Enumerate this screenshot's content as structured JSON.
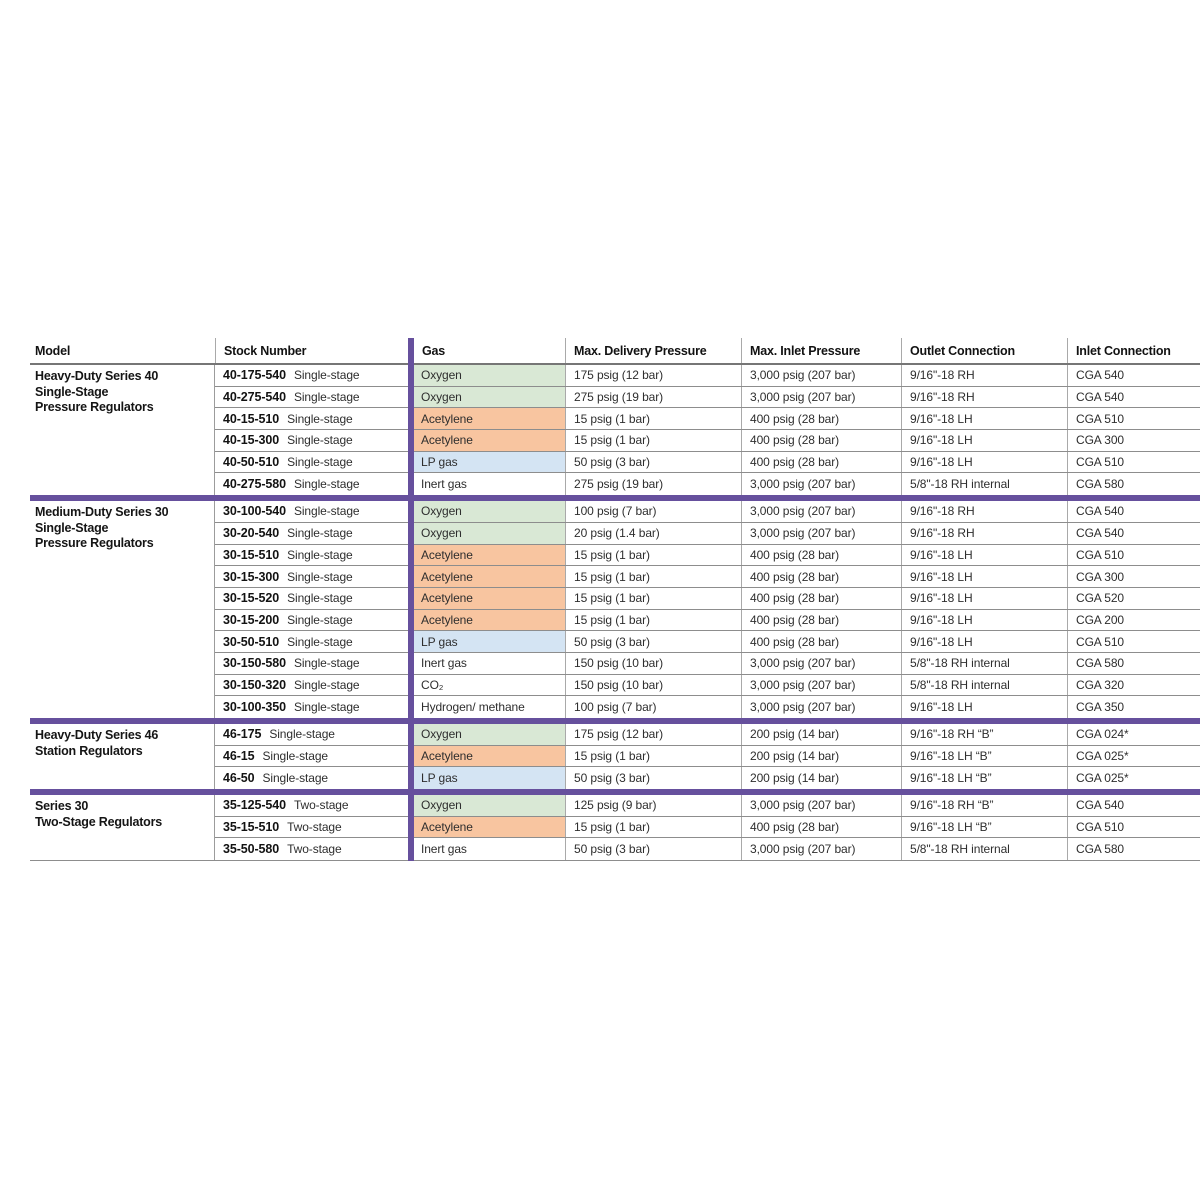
{
  "table": {
    "headers": [
      "Model",
      "Stock Number",
      "Gas",
      "Max. Delivery Pressure",
      "Max. Inlet Pressure",
      "Outlet Connection",
      "Inlet Connection"
    ],
    "colors": {
      "accent_purple": "#66509d",
      "oxygen_green": "#d9e8d5",
      "acetylene_orange": "#f8c5a0",
      "lp_gas_blue": "#d4e4f3",
      "plain_white": "#ffffff"
    },
    "groups": [
      {
        "model_lines": [
          "Heavy-Duty Series 40",
          "Single-Stage",
          "Pressure Regulators"
        ],
        "rows": [
          {
            "stock": "40-175-540",
            "stage": "Single-stage",
            "gas": "Oxygen",
            "gas_color": "oxygen_green",
            "delivery": "175 psig (12 bar)",
            "inlet": "3,000 psig (207 bar)",
            "outlet_conn": "9/16\"-18 RH",
            "inlet_conn": "CGA 540"
          },
          {
            "stock": "40-275-540",
            "stage": "Single-stage",
            "gas": "Oxygen",
            "gas_color": "oxygen_green",
            "delivery": "275 psig (19 bar)",
            "inlet": "3,000 psig (207 bar)",
            "outlet_conn": "9/16\"-18 RH",
            "inlet_conn": "CGA 540"
          },
          {
            "stock": "40-15-510",
            "stage": "Single-stage",
            "gas": "Acetylene",
            "gas_color": "acetylene_orange",
            "delivery": "15 psig (1 bar)",
            "inlet": "400 psig (28 bar)",
            "outlet_conn": "9/16\"-18 LH",
            "inlet_conn": "CGA 510"
          },
          {
            "stock": "40-15-300",
            "stage": "Single-stage",
            "gas": "Acetylene",
            "gas_color": "acetylene_orange",
            "delivery": "15 psig (1 bar)",
            "inlet": "400 psig (28 bar)",
            "outlet_conn": "9/16\"-18 LH",
            "inlet_conn": "CGA 300"
          },
          {
            "stock": "40-50-510",
            "stage": "Single-stage",
            "gas": "LP gas",
            "gas_color": "lp_gas_blue",
            "delivery": "50 psig (3 bar)",
            "inlet": "400 psig (28 bar)",
            "outlet_conn": "9/16\"-18 LH",
            "inlet_conn": "CGA 510"
          },
          {
            "stock": "40-275-580",
            "stage": "Single-stage",
            "gas": "Inert gas",
            "gas_color": "none",
            "delivery": "275 psig (19 bar)",
            "inlet": "3,000 psig (207 bar)",
            "outlet_conn": "5/8\"-18 RH internal",
            "inlet_conn": "CGA 580"
          }
        ]
      },
      {
        "model_lines": [
          "Medium-Duty Series 30",
          "Single-Stage",
          "Pressure Regulators"
        ],
        "rows": [
          {
            "stock": "30-100-540",
            "stage": "Single-stage",
            "gas": "Oxygen",
            "gas_color": "oxygen_green",
            "delivery": "100 psig (7 bar)",
            "inlet": "3,000 psig (207 bar)",
            "outlet_conn": "9/16\"-18 RH",
            "inlet_conn": "CGA 540"
          },
          {
            "stock": "30-20-540",
            "stage": "Single-stage",
            "gas": "Oxygen",
            "gas_color": "oxygen_green",
            "delivery": "20 psig (1.4 bar)",
            "inlet": "3,000 psig (207 bar)",
            "outlet_conn": "9/16\"-18 RH",
            "inlet_conn": "CGA 540"
          },
          {
            "stock": "30-15-510",
            "stage": "Single-stage",
            "gas": "Acetylene",
            "gas_color": "acetylene_orange",
            "delivery": "15 psig (1 bar)",
            "inlet": "400 psig (28 bar)",
            "outlet_conn": "9/16\"-18 LH",
            "inlet_conn": "CGA 510"
          },
          {
            "stock": "30-15-300",
            "stage": "Single-stage",
            "gas": "Acetylene",
            "gas_color": "acetylene_orange",
            "delivery": "15 psig (1 bar)",
            "inlet": "400 psig (28 bar)",
            "outlet_conn": "9/16\"-18 LH",
            "inlet_conn": "CGA 300"
          },
          {
            "stock": "30-15-520",
            "stage": "Single-stage",
            "gas": "Acetylene",
            "gas_color": "acetylene_orange",
            "delivery": "15 psig (1 bar)",
            "inlet": "400 psig (28 bar)",
            "outlet_conn": "9/16\"-18 LH",
            "inlet_conn": "CGA 520"
          },
          {
            "stock": "30-15-200",
            "stage": "Single-stage",
            "gas": "Acetylene",
            "gas_color": "acetylene_orange",
            "delivery": "15 psig (1 bar)",
            "inlet": "400 psig (28 bar)",
            "outlet_conn": "9/16\"-18 LH",
            "inlet_conn": "CGA 200"
          },
          {
            "stock": "30-50-510",
            "stage": "Single-stage",
            "gas": "LP gas",
            "gas_color": "lp_gas_blue",
            "delivery": "50 psig (3 bar)",
            "inlet": "400 psig (28 bar)",
            "outlet_conn": "9/16\"-18 LH",
            "inlet_conn": "CGA 510"
          },
          {
            "stock": "30-150-580",
            "stage": "Single-stage",
            "gas": "Inert gas",
            "gas_color": "none",
            "delivery": "150 psig (10 bar)",
            "inlet": "3,000 psig (207 bar)",
            "outlet_conn": "5/8\"-18 RH internal",
            "inlet_conn": "CGA 580"
          },
          {
            "stock": "30-150-320",
            "stage": "Single-stage",
            "gas": "CO₂",
            "gas_color": "none",
            "delivery": "150 psig (10 bar)",
            "inlet": "3,000 psig (207 bar)",
            "outlet_conn": "5/8\"-18 RH internal",
            "inlet_conn": "CGA 320"
          },
          {
            "stock": "30-100-350",
            "stage": "Single-stage",
            "gas": "Hydrogen/ methane",
            "gas_color": "none",
            "delivery": "100 psig (7 bar)",
            "inlet": "3,000 psig (207 bar)",
            "outlet_conn": "9/16\"-18 LH",
            "inlet_conn": "CGA 350"
          }
        ]
      },
      {
        "model_lines": [
          "Heavy-Duty Series 46",
          "Station Regulators"
        ],
        "rows": [
          {
            "stock": "46-175",
            "stage": "Single-stage",
            "gas": "Oxygen",
            "gas_color": "oxygen_green",
            "delivery": "175 psig (12 bar)",
            "inlet": "200 psig (14 bar)",
            "outlet_conn": "9/16\"-18 RH “B”",
            "inlet_conn": "CGA 024*"
          },
          {
            "stock": "46-15",
            "stage": "Single-stage",
            "gas": "Acetylene",
            "gas_color": "acetylene_orange",
            "delivery": "15 psig (1 bar)",
            "inlet": "200 psig (14 bar)",
            "outlet_conn": "9/16\"-18 LH “B”",
            "inlet_conn": "CGA 025*"
          },
          {
            "stock": "46-50",
            "stage": "Single-stage",
            "gas": "LP gas",
            "gas_color": "lp_gas_blue",
            "delivery": "50 psig (3 bar)",
            "inlet": "200 psig (14 bar)",
            "outlet_conn": "9/16\"-18 LH “B”",
            "inlet_conn": "CGA 025*"
          }
        ]
      },
      {
        "model_lines": [
          "Series 30",
          "Two-Stage Regulators"
        ],
        "rows": [
          {
            "stock": "35-125-540",
            "stage": "Two-stage",
            "gas": "Oxygen",
            "gas_color": "oxygen_green",
            "delivery": "125 psig (9 bar)",
            "inlet": "3,000 psig (207 bar)",
            "outlet_conn": "9/16\"-18 RH “B”",
            "inlet_conn": "CGA 540"
          },
          {
            "stock": "35-15-510",
            "stage": "Two-stage",
            "gas": "Acetylene",
            "gas_color": "acetylene_orange",
            "delivery": "15 psig (1 bar)",
            "inlet": "400 psig (28 bar)",
            "outlet_conn": "9/16\"-18 LH “B”",
            "inlet_conn": "CGA 510"
          },
          {
            "stock": "35-50-580",
            "stage": "Two-stage",
            "gas": "Inert gas",
            "gas_color": "none",
            "delivery": "50 psig (3 bar)",
            "inlet": "3,000 psig (207 bar)",
            "outlet_conn": "5/8\"-18 RH internal",
            "inlet_conn": "CGA 580"
          }
        ]
      }
    ]
  }
}
